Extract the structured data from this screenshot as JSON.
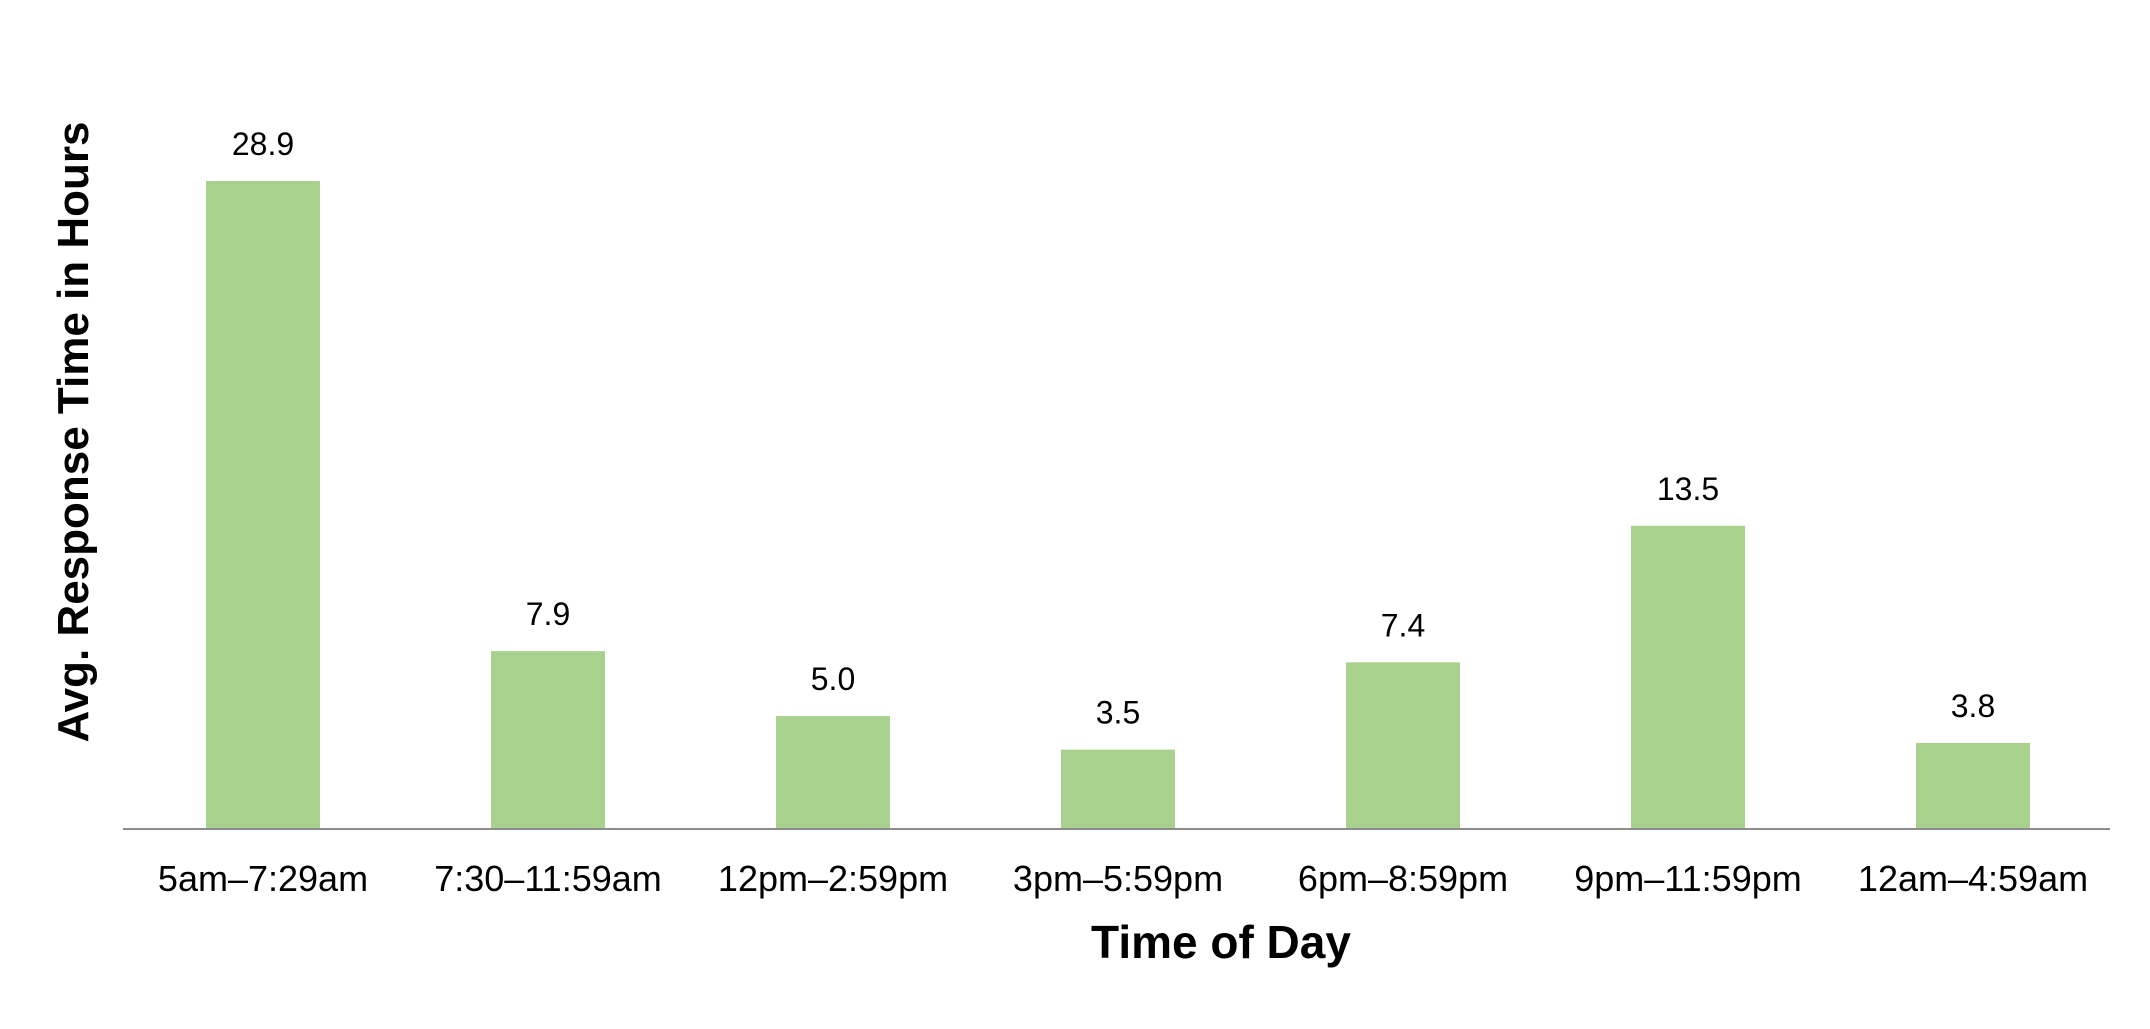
{
  "chart_data": {
    "type": "bar",
    "title": "",
    "xlabel": "Time of Day",
    "ylabel": "Avg. Response Time in Hours",
    "categories": [
      "5am–7:29am",
      "7:30–11:59am",
      "12pm–2:59pm",
      "3pm–5:59pm",
      "6pm–8:59pm",
      "9pm–11:59pm",
      "12am–4:59am"
    ],
    "values": [
      28.9,
      7.9,
      5.0,
      3.5,
      7.4,
      13.5,
      3.8
    ],
    "data_labels": [
      "28.9",
      "7.9",
      "5.0",
      "3.5",
      "7.4",
      "13.5",
      "3.8"
    ],
    "ylim": [
      0,
      28.9
    ],
    "grid": false,
    "legend": "none",
    "colors": {
      "bar": "#a9d18e",
      "axis": "#8c8c8c",
      "text": "#000000"
    }
  }
}
